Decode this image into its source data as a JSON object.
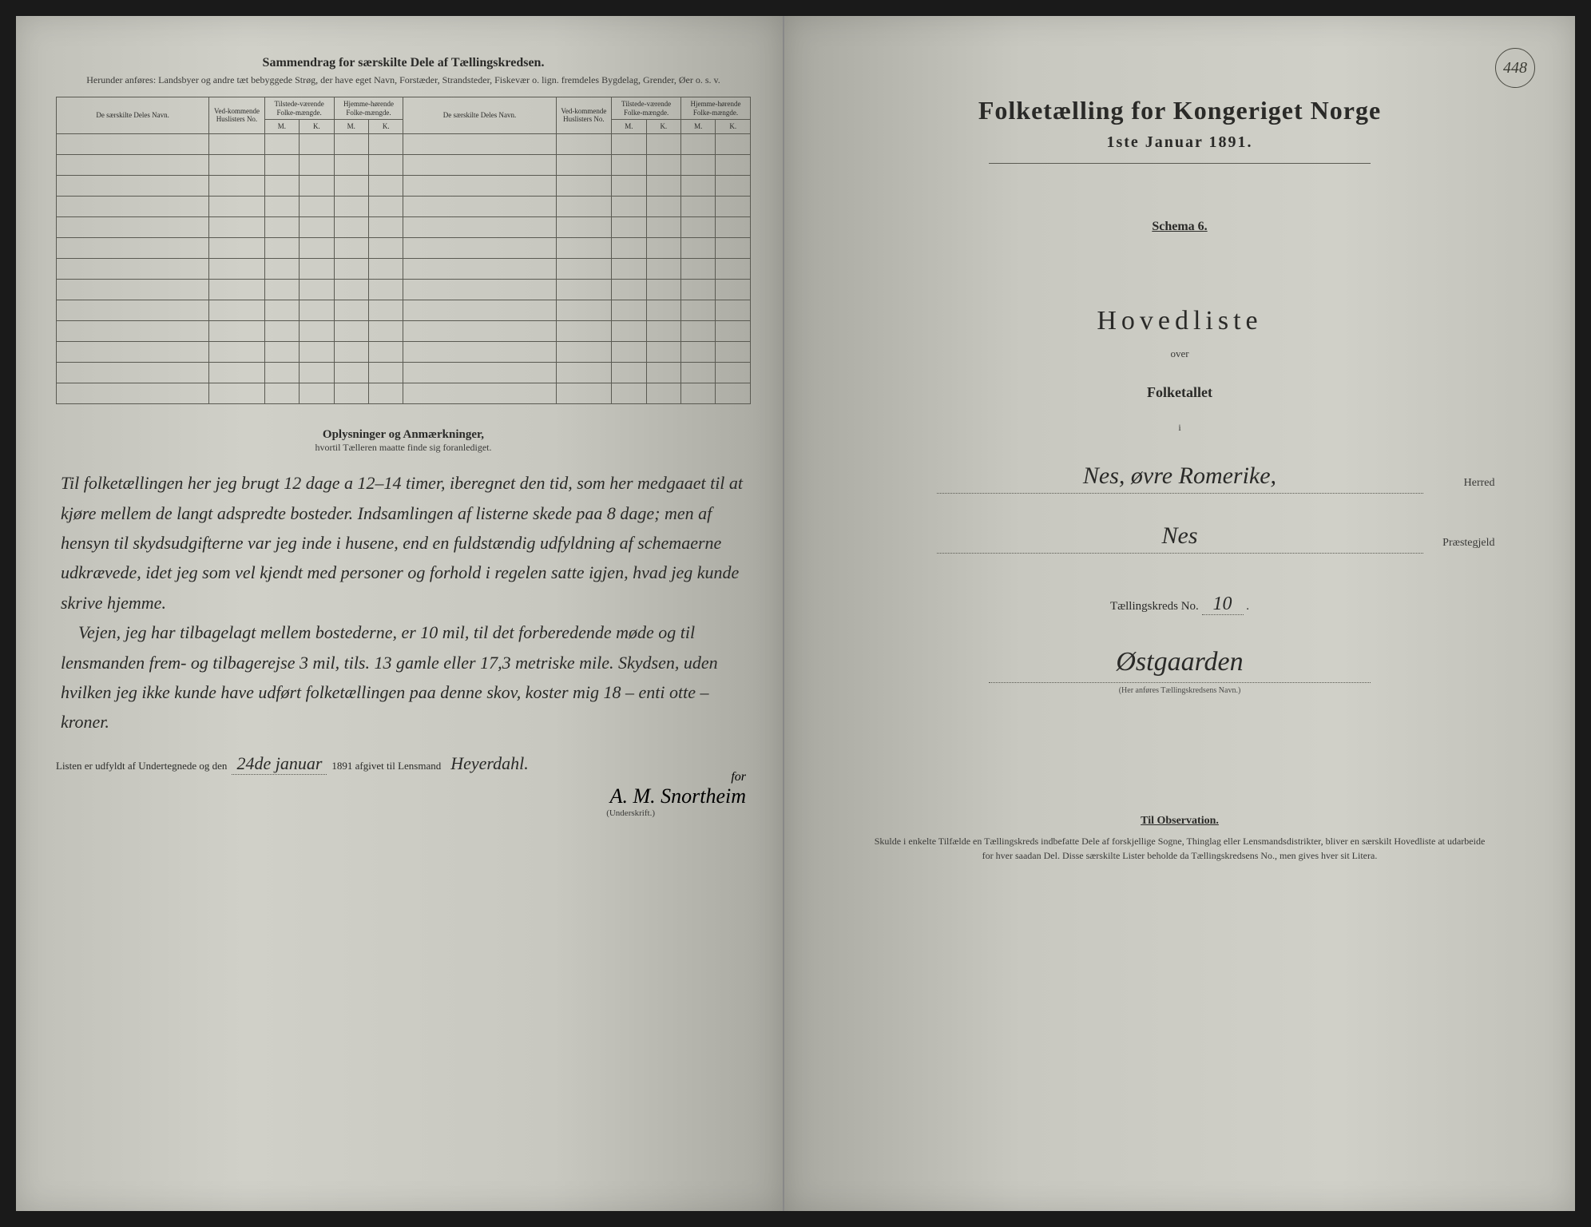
{
  "left": {
    "header": "Sammendrag for særskilte Dele af Tællingskredsen.",
    "subheader": "Herunder anføres: Landsbyer og andre tæt bebyggede Strøg, der have eget Navn, Forstæder, Strandsteder, Fiskevær o. lign. fremdeles Bygdelag, Grender, Øer o. s. v.",
    "table": {
      "col_name": "De særskilte Deles Navn.",
      "col_hus": "Ved-kommende Huslisters No.",
      "col_tilstede": "Tilstede-værende Folke-mængde.",
      "col_hjemme": "Hjemme-hørende Folke-mængde.",
      "mk_m": "M.",
      "mk_k": "K.",
      "blank_rows": 13
    },
    "oplys": {
      "title": "Oplysninger og Anmærkninger,",
      "sub": "hvortil Tælleren maatte finde sig foranlediget.",
      "body": "Til folketællingen her jeg brugt 12 dage a 12–14 timer, iberegnet den tid, som her medgaaet til at kjøre mellem de langt adspredte bosteder. Indsamlingen af listerne skede paa 8 dage; men af hensyn til skydsudgifterne var jeg inde i husene, end en fuldstændig udfyldning af schemaerne udkrævede, idet jeg som vel kjendt med personer og forhold i regelen satte igjen, hvad jeg kunde skrive hjemme.\n    Vejen, jeg har tilbagelagt mellem bostederne, er 10 mil, til det forberedende møde og til lensmanden frem- og tilbagerejse 3 mil, tils. 13 gamle eller 17,3 metriske mile. Skydsen, uden hvilken jeg ikke kunde have udført folketællingen paa denne skov, koster mig 18 – enti otte – kroner."
    },
    "signoff": {
      "prefix": "Listen er udfyldt af Undertegnede og den",
      "date_hw": "24de januar",
      "year": " 1891 afgivet til Lensmand",
      "lensmand": "Heyerdahl.",
      "for": "for",
      "signature": "A. M. Snortheim",
      "underskrift": "(Underskrift.)"
    }
  },
  "right": {
    "page_number": "448",
    "title": "Folketælling for Kongeriget Norge",
    "date": "1ste Januar 1891.",
    "schema": "Schema 6.",
    "hovedliste": "Hovedliste",
    "over": "over",
    "folketallet": "Folketallet",
    "i": "i",
    "herred_hw": "Nes, øvre Romerike,",
    "herred_label": "Herred",
    "praeste_hw": "Nes",
    "praeste_label": "Præstegjeld",
    "kreds_label_pre": "Tællingskreds No.",
    "kreds_no": "10",
    "kreds_label_post": ".",
    "kredsname_hw": "Østgaarden",
    "kredsname_sub": "(Her anføres Tællingskredsens Navn.)",
    "obs_title": "Til Observation.",
    "obs_body": "Skulde i enkelte Tilfælde en Tællingskreds indbefatte Dele af forskjellige Sogne, Thinglag eller Lensmandsdistrikter, bliver en særskilt Hovedliste at udarbeide for hver saadan Del. Disse særskilte Lister beholde da Tællingskredsens No., men gives hver sit Litera."
  },
  "style": {
    "paper_bg": "#c8c8c0",
    "ink": "#2a2a28",
    "rule": "#5a5a52"
  }
}
